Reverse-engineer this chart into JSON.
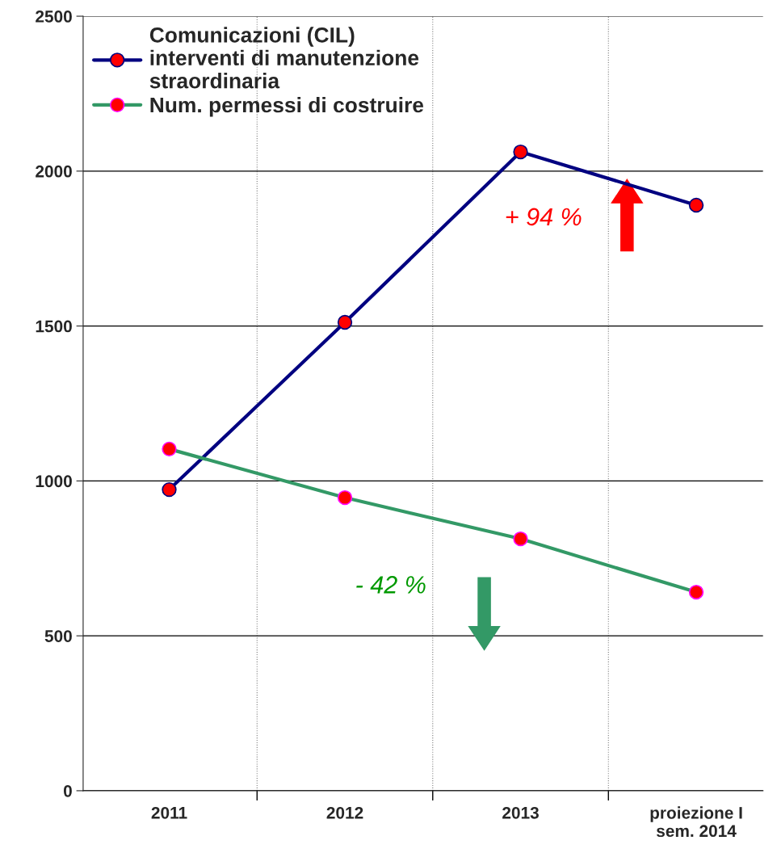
{
  "chart_data": {
    "type": "line",
    "categories": [
      "2011",
      "2012",
      "2013",
      "proiezione I\nsem. 2014"
    ],
    "series": [
      {
        "name": "Comunicazioni (CIL)\ninterventi di manutenzione\nstraordinaria",
        "color": "#000080",
        "values": [
          972,
          1512,
          2062,
          1890
        ]
      },
      {
        "name": "Num. permessi di costruire",
        "color": "#339966",
        "values": [
          1103,
          946,
          813,
          641
        ]
      }
    ],
    "annotations": [
      "+ 94 %",
      "- 42 %"
    ],
    "ylim": [
      0,
      2500
    ],
    "yticks": [
      0,
      500,
      1000,
      1500,
      2000,
      2500
    ],
    "grid": true,
    "legend": "top left",
    "marker": "circle",
    "line_style": "solid"
  }
}
